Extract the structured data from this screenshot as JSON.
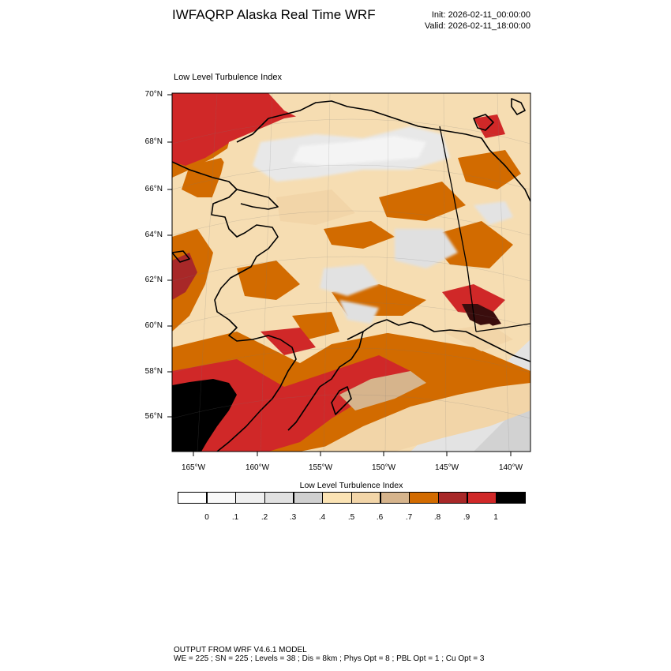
{
  "header": {
    "title": "IWFAQRP Alaska Real Time WRF",
    "init": "Init: 2026-02-11_00:00:00",
    "valid": "Valid: 2026-02-11_18:00:00"
  },
  "plot": {
    "label": "Low Level Turbulence Index",
    "lat_labels": [
      "70°N",
      "68°N",
      "66°N",
      "64°N",
      "62°N",
      "60°N",
      "58°N",
      "56°N"
    ],
    "lon_labels": [
      "165°W",
      "160°W",
      "155°W",
      "150°W",
      "145°W",
      "140°W"
    ]
  },
  "legend": {
    "title": "Low Level Turbulence Index",
    "tick_labels": [
      "0",
      ".1",
      ".2",
      ".3",
      ".4",
      ".5",
      ".6",
      ".7",
      ".8",
      ".9",
      "1"
    ],
    "colors": [
      "#ffffff",
      "#f9f9f9",
      "#efefef",
      "#e1e1e1",
      "#d0d0d0",
      "#fbe3b4",
      "#f2d5a8",
      "#d6b48c",
      "#d26b00",
      "#a82828",
      "#d02828",
      "#000000"
    ]
  },
  "footer": {
    "line1": "OUTPUT FROM WRF V4.6.1 MODEL",
    "line2": "WE = 225 ; SN = 225 ; Levels = 38 ; Dis = 8km ; Phys Opt = 8 ; PBL Opt = 1 ; Cu Opt = 3"
  }
}
